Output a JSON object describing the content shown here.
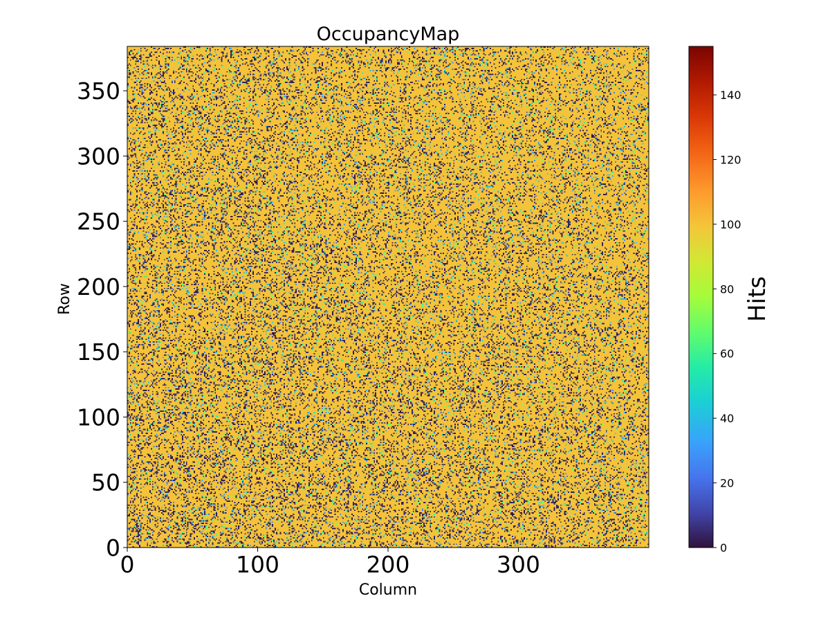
{
  "chart_data": {
    "type": "heatmap",
    "title": "OccupancyMap",
    "xlabel": "Column",
    "ylabel": "Row",
    "xlim": [
      0,
      400
    ],
    "ylim": [
      0,
      384
    ],
    "x_ticks": [
      0,
      100,
      200,
      300
    ],
    "y_ticks": [
      0,
      50,
      100,
      150,
      200,
      250,
      300,
      350
    ],
    "colorbar": {
      "label": "Hits",
      "range": [
        0,
        155
      ],
      "ticks": [
        0,
        20,
        40,
        60,
        80,
        100,
        120,
        140
      ],
      "colormap": "turbo"
    },
    "grid": false,
    "value_distribution": {
      "typical_value": 100,
      "low_values_fraction_estimate": 0.15,
      "dead_pixel_value": 0,
      "mid_values_fraction_estimate": 0.06
    }
  }
}
